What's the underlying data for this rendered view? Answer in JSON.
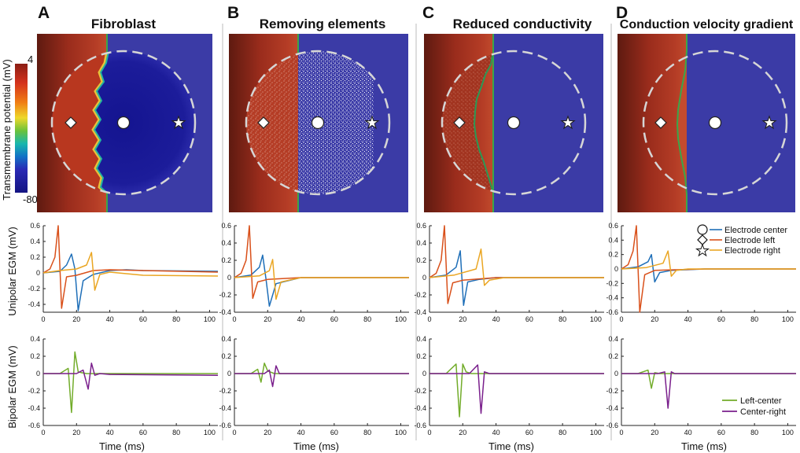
{
  "figure": {
    "colorbar": {
      "label": "Transmembrane potential (mV)",
      "max_label": "4",
      "min_label": "-80"
    },
    "unipolar_ylabel": "Unipolar EGM (mV)",
    "bipolar_ylabel": "Bipolar EGM (mV)",
    "xlabel": "Time (ms)",
    "x_ticks": [
      "0",
      "20",
      "40",
      "60",
      "80",
      "100"
    ],
    "unipolar_legend": [
      "Electrode center",
      "Electrode left",
      "Electrode right"
    ],
    "bipolar_legend": [
      "Left-center",
      "Center-right"
    ],
    "colors": {
      "center": "#1f6fb8",
      "left": "#d9501a",
      "right": "#eaa623",
      "left_center": "#72ac2a",
      "center_right": "#7a1f8c",
      "tissue_resting": "#3b3ba6",
      "tissue_excited": "#a93622"
    }
  },
  "chart_data": [
    {
      "type": "line",
      "panel": "A",
      "title": "Fibroblast",
      "row": "unipolar",
      "xlabel": "Time (ms)",
      "ylabel": "Unipolar EGM (mV)",
      "xlim": [
        0,
        105
      ],
      "ylim": [
        -0.5,
        0.6
      ],
      "yticks": [
        "0.6",
        "0.4",
        "0.2",
        "0",
        "-0.2",
        "-0.4"
      ],
      "series": [
        {
          "name": "Electrode center",
          "x": [
            0,
            10,
            14,
            17,
            19,
            21,
            24,
            30,
            40,
            50,
            60,
            105
          ],
          "y": [
            0,
            0.02,
            0.1,
            0.24,
            0.05,
            -0.48,
            -0.1,
            -0.02,
            0.03,
            0.04,
            0.03,
            0.02
          ]
        },
        {
          "name": "Electrode left",
          "x": [
            0,
            4,
            7,
            9,
            11,
            14,
            20,
            30,
            40,
            60,
            105
          ],
          "y": [
            0,
            0.05,
            0.2,
            0.6,
            -0.45,
            -0.05,
            -0.03,
            0.03,
            0.04,
            0.03,
            0.01
          ]
        },
        {
          "name": "Electrode right",
          "x": [
            0,
            10,
            20,
            26,
            29,
            31,
            34,
            40,
            60,
            105
          ],
          "y": [
            0,
            0.03,
            0.05,
            0.1,
            0.26,
            -0.22,
            -0.02,
            0.01,
            -0.03,
            -0.04
          ]
        }
      ]
    },
    {
      "type": "line",
      "panel": "B",
      "title": "Removing elements",
      "row": "unipolar",
      "xlabel": "Time (ms)",
      "ylabel": "Unipolar EGM (mV)",
      "xlim": [
        0,
        105
      ],
      "ylim": [
        -0.4,
        0.6
      ],
      "yticks": [
        "0.6",
        "0.4",
        "0.2",
        "0",
        "-0.2",
        "-0.4"
      ],
      "series": [
        {
          "name": "Electrode center",
          "x": [
            0,
            10,
            15,
            17,
            19,
            21,
            25,
            40,
            105
          ],
          "y": [
            0,
            0.03,
            0.12,
            0.26,
            -0.02,
            -0.33,
            -0.07,
            0,
            0
          ]
        },
        {
          "name": "Electrode left",
          "x": [
            0,
            4,
            7,
            9,
            11,
            14,
            20,
            40,
            105
          ],
          "y": [
            0,
            0.05,
            0.2,
            0.6,
            -0.24,
            -0.05,
            -0.02,
            0,
            0
          ]
        },
        {
          "name": "Electrode right",
          "x": [
            0,
            15,
            21,
            23,
            25,
            28,
            40,
            105
          ],
          "y": [
            0,
            0.02,
            0.08,
            0.21,
            -0.25,
            -0.05,
            0,
            0
          ]
        }
      ]
    },
    {
      "type": "line",
      "panel": "C",
      "title": "Reduced conductivity",
      "row": "unipolar",
      "xlabel": "Time (ms)",
      "ylabel": "Unipolar EGM (mV)",
      "xlim": [
        0,
        105
      ],
      "ylim": [
        -0.4,
        0.6
      ],
      "yticks": [
        "0.6",
        "0.4",
        "0.2",
        "0",
        "-0.2",
        "-0.4"
      ],
      "series": [
        {
          "name": "Electrode center",
          "x": [
            0,
            10,
            16,
            18.5,
            20.5,
            23,
            30,
            40,
            105
          ],
          "y": [
            0,
            0.03,
            0.12,
            0.31,
            -0.32,
            -0.05,
            -0.02,
            0,
            0
          ]
        },
        {
          "name": "Electrode left",
          "x": [
            0,
            4,
            7,
            9,
            11,
            14,
            20,
            40,
            105
          ],
          "y": [
            0,
            0.05,
            0.2,
            0.6,
            -0.3,
            -0.06,
            -0.03,
            0,
            0
          ]
        },
        {
          "name": "Electrode right",
          "x": [
            0,
            15,
            28,
            31,
            33,
            36,
            45,
            105
          ],
          "y": [
            0,
            0.03,
            0.1,
            0.33,
            -0.09,
            -0.03,
            0,
            0
          ]
        }
      ]
    },
    {
      "type": "line",
      "panel": "D",
      "title": "Conduction velocity gradient",
      "row": "unipolar",
      "xlabel": "Time (ms)",
      "ylabel": "Unipolar EGM (mV)",
      "xlim": [
        0,
        105
      ],
      "ylim": [
        -0.6,
        0.6
      ],
      "yticks": [
        "0.6",
        "0.4",
        "0.2",
        "0",
        "-0.2",
        "-0.4",
        "-0.6"
      ],
      "series": [
        {
          "name": "Electrode center",
          "x": [
            0,
            10,
            16,
            18,
            20,
            23,
            30,
            50,
            105
          ],
          "y": [
            0,
            0.03,
            0.1,
            0.2,
            -0.18,
            -0.05,
            -0.02,
            0,
            0
          ]
        },
        {
          "name": "Electrode left",
          "x": [
            0,
            4,
            7,
            9,
            11,
            14,
            20,
            50,
            105
          ],
          "y": [
            0,
            0.06,
            0.25,
            0.6,
            -0.6,
            -0.08,
            -0.02,
            0,
            0
          ]
        },
        {
          "name": "Electrode right",
          "x": [
            0,
            15,
            25,
            28,
            30,
            33,
            40,
            105
          ],
          "y": [
            0,
            0.02,
            0.08,
            0.25,
            -0.1,
            -0.02,
            0,
            0
          ]
        }
      ]
    },
    {
      "type": "line",
      "panel": "A",
      "row": "bipolar",
      "xlabel": "Time (ms)",
      "ylabel": "Bipolar EGM (mV)",
      "xlim": [
        0,
        105
      ],
      "ylim": [
        -0.6,
        0.4
      ],
      "yticks": [
        "0.4",
        "0.2",
        "0",
        "-0.2",
        "-0.4",
        "-0.6"
      ],
      "series": [
        {
          "name": "Left-center",
          "x": [
            0,
            10,
            15,
            17,
            19,
            21,
            23,
            26,
            30,
            50,
            105
          ],
          "y": [
            0,
            0,
            0.06,
            -0.45,
            0.25,
            0.02,
            0.01,
            0,
            0,
            0,
            0
          ]
        },
        {
          "name": "Center-right",
          "x": [
            0,
            20,
            24,
            27,
            29,
            31,
            34,
            40,
            105
          ],
          "y": [
            0,
            0,
            0.04,
            -0.18,
            0.12,
            -0.02,
            0,
            -0.01,
            -0.02
          ]
        }
      ]
    },
    {
      "type": "line",
      "panel": "B",
      "row": "bipolar",
      "xlabel": "Time (ms)",
      "ylabel": "Bipolar EGM (mV)",
      "xlim": [
        0,
        105
      ],
      "ylim": [
        -0.6,
        0.4
      ],
      "yticks": [
        "0.4",
        "0.2",
        "0",
        "-0.2",
        "-0.4",
        "-0.6"
      ],
      "series": [
        {
          "name": "Left-center",
          "x": [
            0,
            10,
            14,
            16,
            18,
            20,
            24,
            105
          ],
          "y": [
            0,
            0,
            0.05,
            -0.1,
            0.12,
            0.03,
            0,
            0
          ]
        },
        {
          "name": "Center-right",
          "x": [
            0,
            18,
            21,
            23,
            25,
            27,
            30,
            105
          ],
          "y": [
            0,
            0,
            0.04,
            -0.15,
            0.09,
            0,
            0,
            0
          ]
        }
      ]
    },
    {
      "type": "line",
      "panel": "C",
      "row": "bipolar",
      "xlabel": "Time (ms)",
      "ylabel": "Bipolar EGM (mV)",
      "xlim": [
        0,
        105
      ],
      "ylim": [
        -0.6,
        0.4
      ],
      "yticks": [
        "0.4",
        "0.2",
        "0",
        "-0.2",
        "-0.4",
        "-0.6"
      ],
      "series": [
        {
          "name": "Left-center",
          "x": [
            0,
            10,
            16,
            18,
            20,
            22,
            25,
            105
          ],
          "y": [
            0,
            0,
            0.11,
            -0.5,
            0.11,
            0.02,
            0,
            0
          ]
        },
        {
          "name": "Center-right",
          "x": [
            0,
            24,
            29,
            31,
            33,
            36,
            105
          ],
          "y": [
            0,
            0,
            0.1,
            -0.46,
            0.02,
            0,
            0
          ]
        }
      ]
    },
    {
      "type": "line",
      "panel": "D",
      "row": "bipolar",
      "xlabel": "Time (ms)",
      "ylabel": "Bipolar EGM (mV)",
      "xlim": [
        0,
        105
      ],
      "ylim": [
        -0.6,
        0.4
      ],
      "yticks": [
        "0.4",
        "0.2",
        "0",
        "-0.2",
        "-0.4",
        "-0.6"
      ],
      "series": [
        {
          "name": "Left-center",
          "x": [
            0,
            10,
            16,
            18,
            20,
            23,
            105
          ],
          "y": [
            0,
            0,
            0.04,
            -0.17,
            0.01,
            0,
            0
          ]
        },
        {
          "name": "Center-right",
          "x": [
            0,
            22,
            26,
            28,
            30,
            32,
            105
          ],
          "y": [
            0,
            0,
            0.02,
            -0.4,
            0.02,
            0,
            0
          ]
        }
      ]
    }
  ],
  "maps": [
    {
      "letter": "A",
      "title": "Fibroblast",
      "pattern": "fibroblast"
    },
    {
      "letter": "B",
      "title": "Removing elements",
      "pattern": "removing"
    },
    {
      "letter": "C",
      "title": "Reduced conductivity",
      "pattern": "reduced"
    },
    {
      "letter": "D",
      "title": "Conduction velocity gradient",
      "pattern": "gradient"
    }
  ]
}
